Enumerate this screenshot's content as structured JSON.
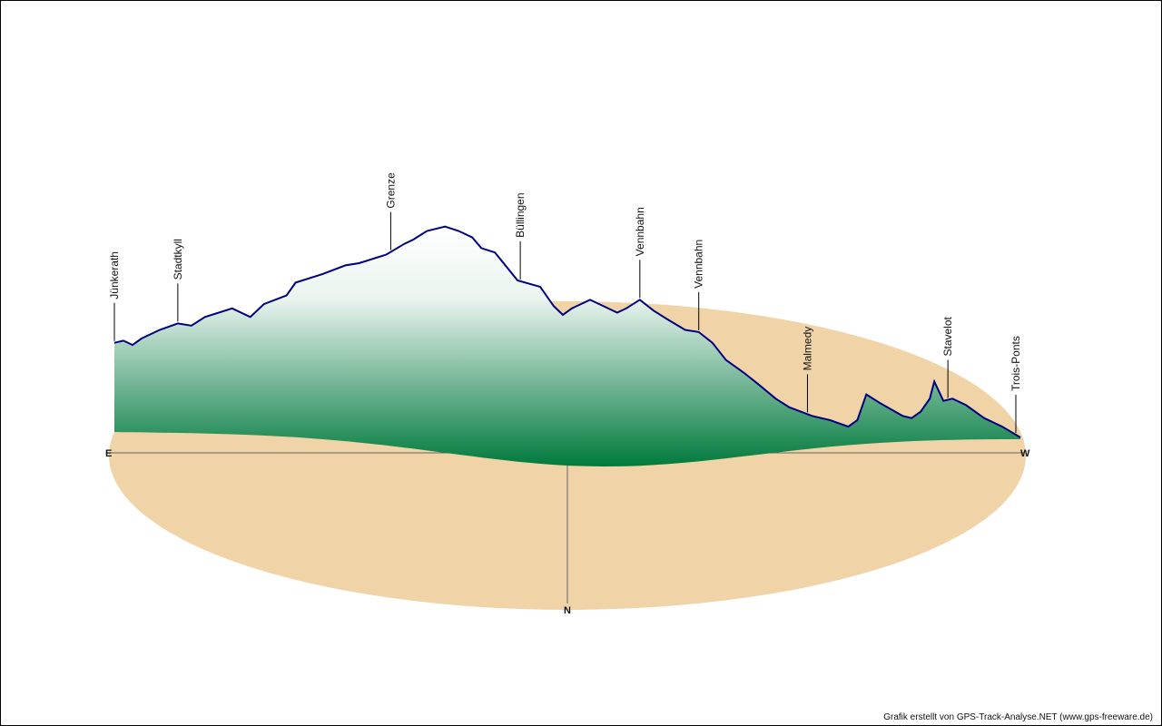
{
  "colors": {
    "ground": "#F0D3A6",
    "profile_line": "#000080",
    "fill_top": "#FFFFFF",
    "fill_bottom": "#007A3D"
  },
  "compass": {
    "east": "E",
    "west": "W",
    "north": "N"
  },
  "credit": "Grafik erstellt von GPS-Track-Analyse.NET (www.gps-freeware.de)",
  "chart_data": {
    "type": "area",
    "title": "",
    "description": "3D perspective elevation profile of a GPS track on a compass ground ellipse",
    "x_unit": "fraction of track length",
    "y_unit": "relative elevation (0 = lowest, 100 = highest)",
    "profile": [
      [
        0.0,
        44
      ],
      [
        0.01,
        45
      ],
      [
        0.02,
        43
      ],
      [
        0.03,
        46
      ],
      [
        0.05,
        50
      ],
      [
        0.07,
        53
      ],
      [
        0.085,
        52
      ],
      [
        0.1,
        56
      ],
      [
        0.13,
        60
      ],
      [
        0.15,
        56
      ],
      [
        0.165,
        62
      ],
      [
        0.19,
        66
      ],
      [
        0.2,
        72
      ],
      [
        0.23,
        76
      ],
      [
        0.255,
        80
      ],
      [
        0.27,
        81
      ],
      [
        0.3,
        85
      ],
      [
        0.32,
        90
      ],
      [
        0.33,
        92
      ],
      [
        0.345,
        96
      ],
      [
        0.365,
        98
      ],
      [
        0.38,
        96
      ],
      [
        0.395,
        93
      ],
      [
        0.405,
        88
      ],
      [
        0.42,
        86
      ],
      [
        0.445,
        73
      ],
      [
        0.47,
        70
      ],
      [
        0.485,
        61
      ],
      [
        0.495,
        57
      ],
      [
        0.505,
        60
      ],
      [
        0.525,
        64
      ],
      [
        0.54,
        61
      ],
      [
        0.555,
        58
      ],
      [
        0.565,
        60
      ],
      [
        0.58,
        64
      ],
      [
        0.595,
        59
      ],
      [
        0.61,
        55
      ],
      [
        0.63,
        50
      ],
      [
        0.645,
        49
      ],
      [
        0.66,
        44
      ],
      [
        0.675,
        36
      ],
      [
        0.695,
        30
      ],
      [
        0.71,
        25
      ],
      [
        0.73,
        18
      ],
      [
        0.745,
        14
      ],
      [
        0.77,
        10
      ],
      [
        0.79,
        8
      ],
      [
        0.81,
        5
      ],
      [
        0.82,
        8
      ],
      [
        0.83,
        20
      ],
      [
        0.845,
        16
      ],
      [
        0.87,
        10
      ],
      [
        0.88,
        9
      ],
      [
        0.89,
        12
      ],
      [
        0.9,
        18
      ],
      [
        0.905,
        26
      ],
      [
        0.915,
        17
      ],
      [
        0.925,
        18
      ],
      [
        0.94,
        15
      ],
      [
        0.96,
        9
      ],
      [
        0.98,
        5
      ],
      [
        1.0,
        0
      ]
    ],
    "waypoints": [
      {
        "name": "Jünkerath",
        "x": 0.0
      },
      {
        "name": "Stadtkyll",
        "x": 0.07
      },
      {
        "name": "Grenze",
        "x": 0.305
      },
      {
        "name": "Büllingen",
        "x": 0.448
      },
      {
        "name": "Vennbahn",
        "x": 0.58
      },
      {
        "name": "Vennbahn",
        "x": 0.645
      },
      {
        "name": "Malmedy",
        "x": 0.765
      },
      {
        "name": "Stavelot",
        "x": 0.92
      },
      {
        "name": "Trois-Ponts",
        "x": 0.995
      }
    ],
    "legend": "none",
    "grid": false
  }
}
